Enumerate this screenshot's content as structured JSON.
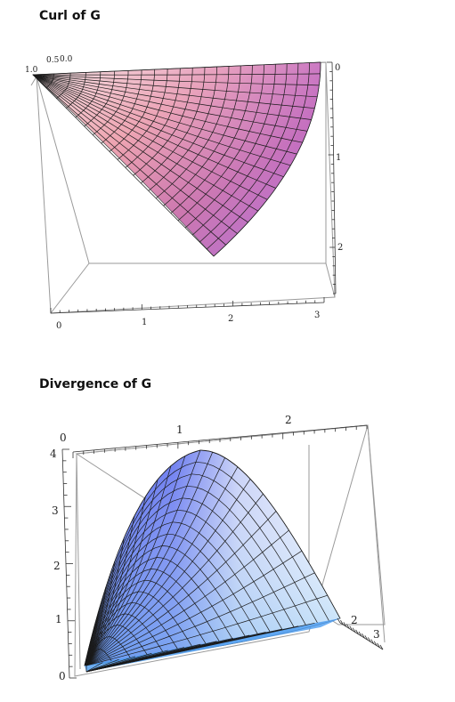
{
  "charts": [
    {
      "title": "Curl of G"
    },
    {
      "title": "Divergence of G"
    }
  ],
  "chart_data": [
    {
      "type": "surface",
      "title": "Curl of G",
      "colormap": "magenta-pink",
      "x_ticks": [
        "0",
        "1",
        "2",
        "3"
      ],
      "y_ticks": [
        "0",
        "1",
        "2"
      ],
      "corner_ticks": [
        "1.0",
        "0.5",
        "0.0"
      ],
      "xlim": [
        0,
        3.14
      ],
      "ylim": [
        0,
        2.2
      ],
      "u_range": [
        0,
        1.571
      ],
      "v_range": [
        0,
        3.14
      ],
      "grid": true
    },
    {
      "type": "surface",
      "title": "Divergence of G",
      "colormap": "blue-white",
      "x_ticks": [
        "1",
        "2"
      ],
      "y_ticks": [
        "2",
        "3"
      ],
      "z_ticks": [
        "0",
        "1",
        "2",
        "3",
        "4"
      ],
      "corner_ticks": [
        "0"
      ],
      "zlim": [
        0,
        4
      ],
      "z_max": 4,
      "grid": true
    }
  ]
}
